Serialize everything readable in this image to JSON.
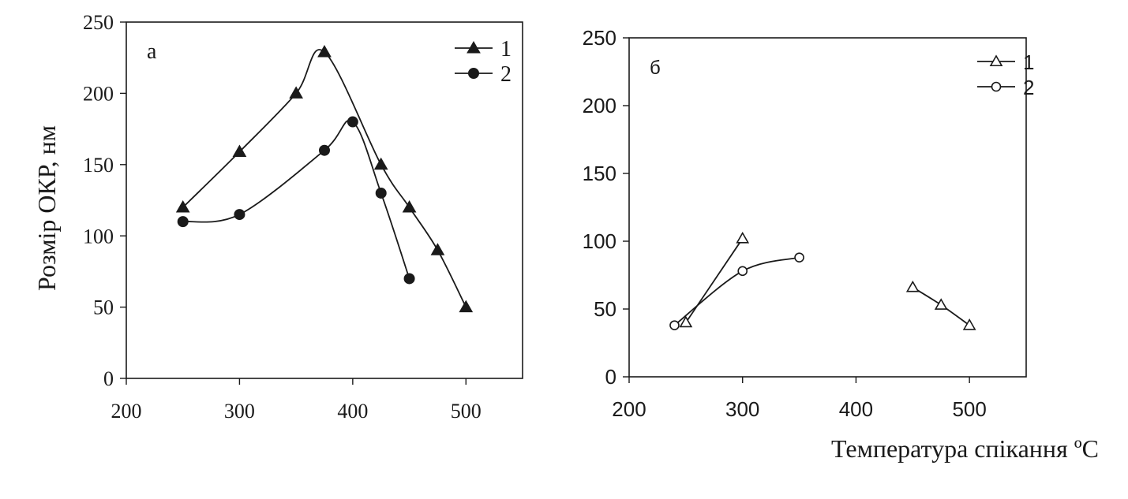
{
  "ylabel": "Розмір  ОКР, нм",
  "xlabel": "Температура спікання ºС",
  "chart_data": [
    {
      "type": "line",
      "panel_label": "а",
      "xlim": [
        200,
        550
      ],
      "ylim": [
        0,
        250
      ],
      "x_ticks": [
        200,
        300,
        400,
        500
      ],
      "y_ticks": [
        0,
        50,
        100,
        150,
        200,
        250
      ],
      "grid": false,
      "legend_position": "top-right",
      "series": [
        {
          "name": "1",
          "marker": "filled-triangle",
          "points": [
            [
              250,
              120
            ],
            [
              300,
              159
            ],
            [
              350,
              200
            ],
            [
              375,
              229
            ]
          ],
          "points_b": [
            [
              425,
              150
            ],
            [
              450,
              120
            ],
            [
              475,
              90
            ],
            [
              500,
              50
            ]
          ],
          "bridge": [
            [
              375,
              229
            ]
          ]
        },
        {
          "name": "2",
          "marker": "filled-circle",
          "points": [
            [
              250,
              110
            ],
            [
              300,
              115
            ],
            [
              375,
              160
            ],
            [
              400,
              180
            ],
            [
              425,
              130
            ],
            [
              450,
              70
            ]
          ]
        }
      ]
    },
    {
      "type": "line",
      "panel_label": "б",
      "xlim": [
        200,
        550
      ],
      "ylim": [
        0,
        250
      ],
      "x_ticks": [
        200,
        300,
        400,
        500
      ],
      "y_ticks": [
        0,
        50,
        100,
        150,
        200,
        250
      ],
      "grid": false,
      "legend_position": "top-right",
      "series": [
        {
          "name": "1",
          "marker": "open-triangle",
          "segments": [
            [
              [
                250,
                40
              ],
              [
                300,
                102
              ]
            ],
            [
              [
                450,
                66
              ],
              [
                475,
                53
              ],
              [
                500,
                38
              ]
            ]
          ]
        },
        {
          "name": "2",
          "marker": "open-circle",
          "segments": [
            [
              [
                240,
                38
              ],
              [
                300,
                78
              ],
              [
                350,
                88
              ]
            ]
          ]
        }
      ]
    }
  ]
}
